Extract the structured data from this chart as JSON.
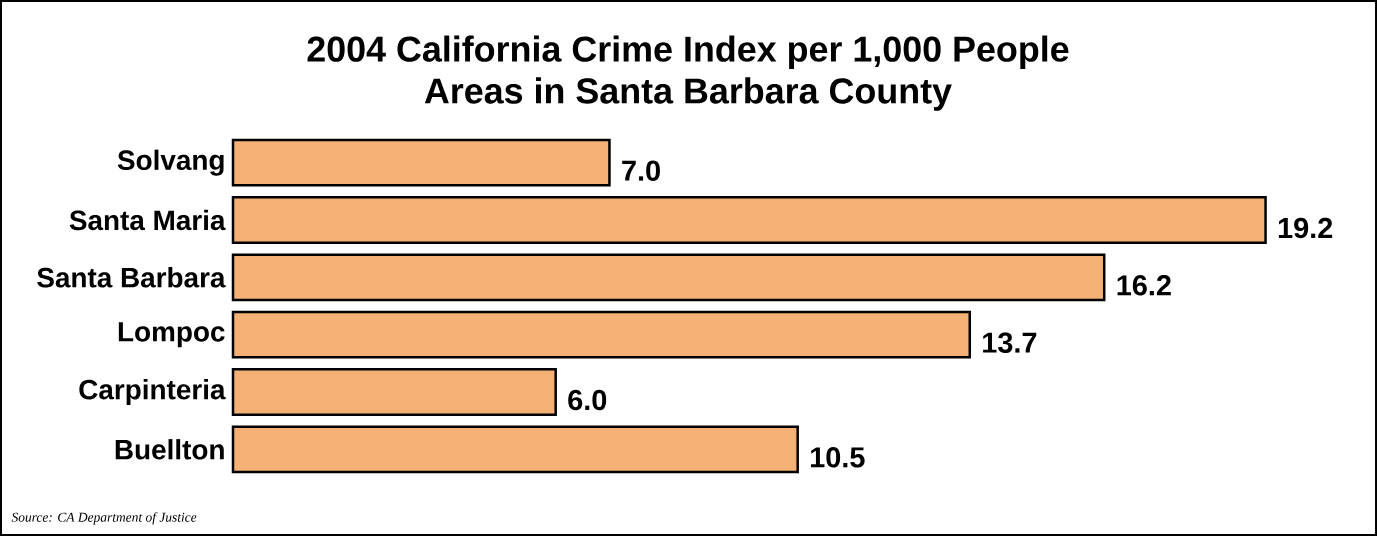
{
  "chart_data": {
    "type": "bar",
    "orientation": "horizontal",
    "title": "2004 California Crime Index per 1,000 People",
    "subtitle": "Areas in Santa Barbara County",
    "categories": [
      "Solvang",
      "Santa Maria",
      "Santa Barbara",
      "Lompoc",
      "Carpinteria",
      "Buellton"
    ],
    "values": [
      7.0,
      19.2,
      16.2,
      13.7,
      6.0,
      10.5
    ],
    "value_labels": [
      "7.0",
      "19.2",
      "16.2",
      "13.7",
      "6.0",
      "10.5"
    ],
    "color": "#f5b175",
    "annotations": [
      "Source: CA Department of Justice"
    ]
  }
}
